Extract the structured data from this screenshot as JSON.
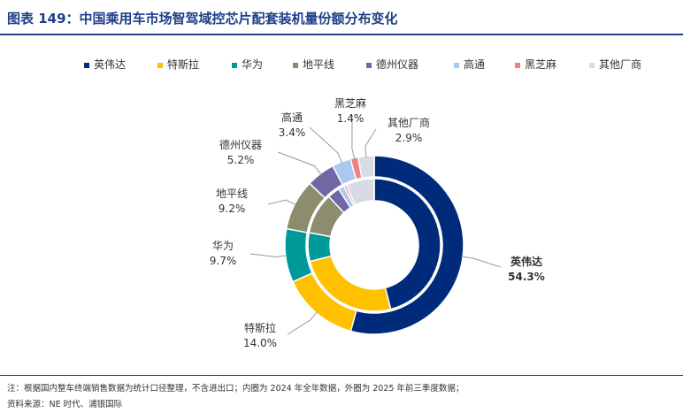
{
  "header": {
    "title_prefix": "图表 149：",
    "title_text": "中国乘用车市场智驾域控芯片配套装机量份额分布变化"
  },
  "chart_data": {
    "type": "pie",
    "categories": [
      "英伟达",
      "特斯拉",
      "华为",
      "地平线",
      "德州仪器",
      "高通",
      "黑芝麻",
      "其他厂商"
    ],
    "colors": [
      "#002b7a",
      "#ffc000",
      "#00999a",
      "#8c8c6e",
      "#6f68a4",
      "#a9c9ee",
      "#f08080",
      "#d6dbe4"
    ],
    "series": [
      {
        "values": [
          54.3,
          14.0,
          9.7,
          9.2,
          5.2,
          3.4,
          1.4,
          2.9
        ],
        "labels": [
          "54.3%",
          "14.0%",
          "9.7%",
          "9.2%",
          "5.2%",
          "3.4%",
          "1.4%",
          "2.9%"
        ]
      },
      {
        "values": [
          46,
          25,
          7,
          10,
          3,
          1.4,
          0.6,
          7
        ]
      }
    ],
    "legend_position": "top"
  },
  "footer": {
    "note": "注：根据国内整车终端销售数据为统计口径整理，不含进出口；内圈为 2024 年全年数据，外圈为 2025 年前三季度数据；",
    "source": "资料来源：NE 时代、浦银国际"
  }
}
